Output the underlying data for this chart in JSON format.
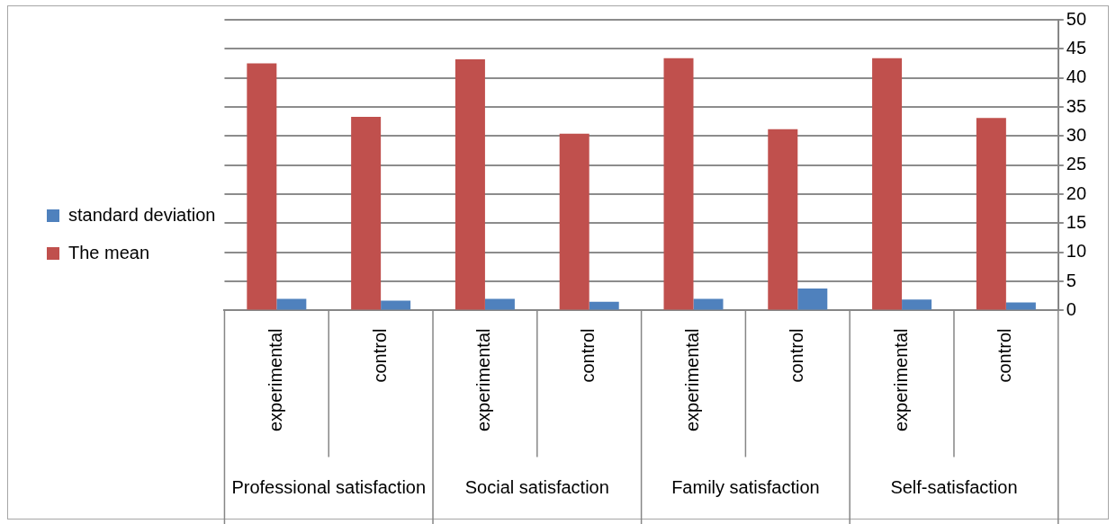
{
  "chart_data": {
    "type": "bar",
    "categories": [
      "experimental",
      "control",
      "experimental",
      "control",
      "experimental",
      "control",
      "experimental",
      "control"
    ],
    "series": [
      {
        "name": "The mean",
        "color": "#c0504d",
        "values": [
          42.5,
          33.3,
          43.2,
          30.4,
          43.4,
          31.2,
          43.4,
          33.1
        ]
      },
      {
        "name": "standard deviation",
        "color": "#4f81bd",
        "values": [
          2.0,
          1.7,
          2.0,
          1.5,
          2.0,
          3.8,
          1.9,
          1.4
        ]
      }
    ],
    "annotations": [
      "Professional satisfaction",
      "Social satisfaction",
      "Family satisfaction",
      "Self-satisfaction"
    ],
    "ylim": [
      0,
      50
    ],
    "yticks": [
      0,
      5,
      10,
      15,
      20,
      25,
      30,
      35,
      40,
      45,
      50
    ],
    "grid": "y",
    "legend": "left"
  }
}
